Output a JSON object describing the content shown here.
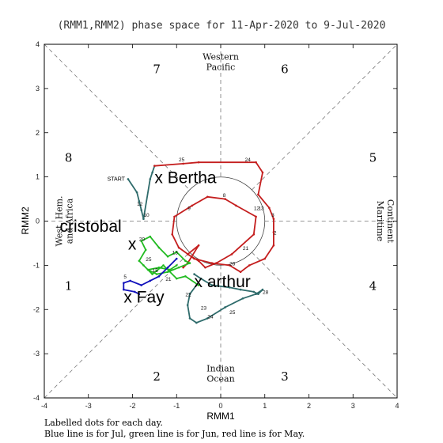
{
  "chart_data": {
    "type": "line",
    "title": "(RMM1,RMM2) phase space for 11-Apr-2020 to  9-Jul-2020",
    "xlabel": "RMM1",
    "ylabel": "RMM2",
    "xlim": [
      -4,
      4
    ],
    "ylim": [
      -4,
      4
    ],
    "x_ticks": [
      "-4",
      "-3",
      "-2",
      "-1",
      "0",
      "1",
      "2",
      "3",
      "4"
    ],
    "y_ticks": [
      "-4",
      "-3",
      "-2",
      "-1",
      "0",
      "1",
      "2",
      "3",
      "4"
    ],
    "phases": [
      {
        "label": "1",
        "x": -3.45,
        "y": -1.45
      },
      {
        "label": "2",
        "x": -1.45,
        "y": -3.5
      },
      {
        "label": "3",
        "x": 1.45,
        "y": -3.5
      },
      {
        "label": "4",
        "x": 3.45,
        "y": -1.45
      },
      {
        "label": "5",
        "x": 3.45,
        "y": 1.45
      },
      {
        "label": "6",
        "x": 1.45,
        "y": 3.45
      },
      {
        "label": "7",
        "x": -1.45,
        "y": 3.45
      },
      {
        "label": "8",
        "x": -3.45,
        "y": 1.45
      }
    ],
    "regions": {
      "top": [
        "Western",
        "Pacific"
      ],
      "bottom": [
        "Indian",
        "Ocean"
      ],
      "left": [
        "West. Hem.",
        "and Africa"
      ],
      "right": [
        "Maritime",
        "Continent"
      ]
    },
    "unit_circle_radius": 1,
    "start_label": "START",
    "start_point": [
      -2.1,
      0.95
    ],
    "series": [
      {
        "color": "#2e6b6b",
        "x": [
          -2.1,
          -1.9,
          -1.85,
          -1.8,
          -1.75,
          -1.6,
          -1.55,
          -1.5
        ],
        "y": [
          0.95,
          0.65,
          0.45,
          0.25,
          0.05,
          0.95,
          1.1,
          1.25
        ]
      },
      {
        "color": "#c41e1e",
        "x": [
          -1.5,
          -0.85,
          -0.5,
          0.8,
          0.95,
          0.85,
          1.1,
          1.2,
          1.2,
          1.2,
          1.0,
          0.65,
          0.45,
          0.2,
          -0.2,
          -0.6,
          -0.95,
          -1.1,
          -1.05,
          -0.65,
          -0.3,
          0.1,
          0.35,
          0.8,
          0.75,
          0.25,
          -0.1,
          -0.35,
          -0.5,
          -0.75,
          -0.5,
          -0.75,
          -0.85
        ],
        "y": [
          1.25,
          1.3,
          1.33,
          1.33,
          1.1,
          0.6,
          0.3,
          0.05,
          -0.25,
          -0.55,
          -0.85,
          -1.0,
          -1.15,
          -1.0,
          -0.95,
          -0.85,
          -0.6,
          -0.3,
          0.1,
          0.35,
          0.55,
          0.5,
          0.35,
          0.1,
          -0.3,
          -0.75,
          -0.95,
          -1.05,
          -0.9,
          -0.75,
          -0.55,
          -0.95,
          -1.05
        ]
      },
      {
        "color": "#2e6b6b",
        "x": [
          -0.6,
          -0.45,
          -0.2,
          0.2,
          0.45,
          0.75,
          0.85,
          0.95,
          0.8,
          0.5,
          0.1,
          -0.3,
          -0.55,
          -0.7,
          -0.75,
          -0.7,
          -0.55
        ],
        "y": [
          -1.2,
          -1.3,
          -1.45,
          -1.5,
          -1.55,
          -1.6,
          -1.65,
          -1.55,
          -1.65,
          -1.75,
          -1.95,
          -2.2,
          -2.3,
          -2.2,
          -1.9,
          -1.65,
          -1.45
        ]
      },
      {
        "color": "#22bb22",
        "x": [
          -0.5,
          -0.8,
          -1.0,
          -1.3,
          -1.55,
          -1.75,
          -1.85,
          -1.7,
          -1.8,
          -1.6,
          -1.4,
          -1.2,
          -1.0,
          -0.8,
          -0.7,
          -0.95,
          -1.2,
          -1.45,
          -1.65,
          -1.4,
          -1.15,
          -1.0
        ],
        "y": [
          -1.45,
          -1.25,
          -1.3,
          -1.0,
          -1.2,
          -1.0,
          -0.9,
          -0.65,
          -0.45,
          -0.35,
          -0.6,
          -0.8,
          -0.7,
          -0.9,
          -0.95,
          -1.05,
          -1.15,
          -1.2,
          -1.1,
          -1.05,
          -1.1,
          -1.0
        ]
      },
      {
        "color": "#1010bb",
        "x": [
          -1.0,
          -1.2,
          -1.4,
          -1.6,
          -1.8,
          -2.05,
          -2.2,
          -2.2,
          -1.95,
          -1.85
        ],
        "y": [
          -0.85,
          -1.05,
          -1.25,
          -1.35,
          -1.45,
          -1.35,
          -1.4,
          -1.55,
          -1.6,
          -1.65
        ]
      }
    ],
    "day_labels": [
      {
        "text": "25",
        "x": -0.95,
        "y": 1.35
      },
      {
        "text": "24",
        "x": 0.55,
        "y": 1.35
      },
      {
        "text": "8",
        "x": 0.05,
        "y": 0.55
      },
      {
        "text": "9",
        "x": -0.75,
        "y": 0.25
      },
      {
        "text": "12",
        "x": 0.75,
        "y": 0.25
      },
      {
        "text": "13",
        "x": 0.85,
        "y": 0.25
      },
      {
        "text": "3",
        "x": 1.15,
        "y": 0.1
      },
      {
        "text": "2",
        "x": 1.2,
        "y": -0.3
      },
      {
        "text": "21",
        "x": 0.5,
        "y": -0.65
      },
      {
        "text": "26",
        "x": 0.2,
        "y": -1.0
      },
      {
        "text": "28",
        "x": 0.95,
        "y": -1.65
      },
      {
        "text": "25",
        "x": 0.2,
        "y": -2.1
      },
      {
        "text": "24",
        "x": -0.3,
        "y": -2.2
      },
      {
        "text": "23",
        "x": -0.45,
        "y": -2.0
      },
      {
        "text": "22",
        "x": -0.8,
        "y": -1.7
      },
      {
        "text": "21",
        "x": -1.25,
        "y": -1.35
      },
      {
        "text": "12",
        "x": -1.9,
        "y": 0.35
      },
      {
        "text": "10",
        "x": -1.75,
        "y": 0.1
      },
      {
        "text": "20",
        "x": -1.85,
        "y": -0.45
      },
      {
        "text": "25",
        "x": -1.7,
        "y": -0.9
      },
      {
        "text": "5",
        "x": -2.2,
        "y": -1.3
      },
      {
        "text": "15",
        "x": -1.55,
        "y": -1.15
      },
      {
        "text": "13",
        "x": -1.1,
        "y": -0.75
      }
    ],
    "storms": [
      {
        "text": "x Bertha",
        "x": -1.5,
        "y": 1.0
      },
      {
        "text": "cristobal",
        "x": -3.65,
        "y": -0.1
      },
      {
        "text": "x",
        "x": -2.1,
        "y": -0.5
      },
      {
        "text": "x arthur",
        "x": -0.6,
        "y": -1.35
      },
      {
        "text": "x Fay",
        "x": -2.2,
        "y": -1.7
      }
    ],
    "footnotes": [
      "Labelled dots for each day.",
      "Blue line is for Jul, green line is for Jun, red line is for May."
    ]
  }
}
